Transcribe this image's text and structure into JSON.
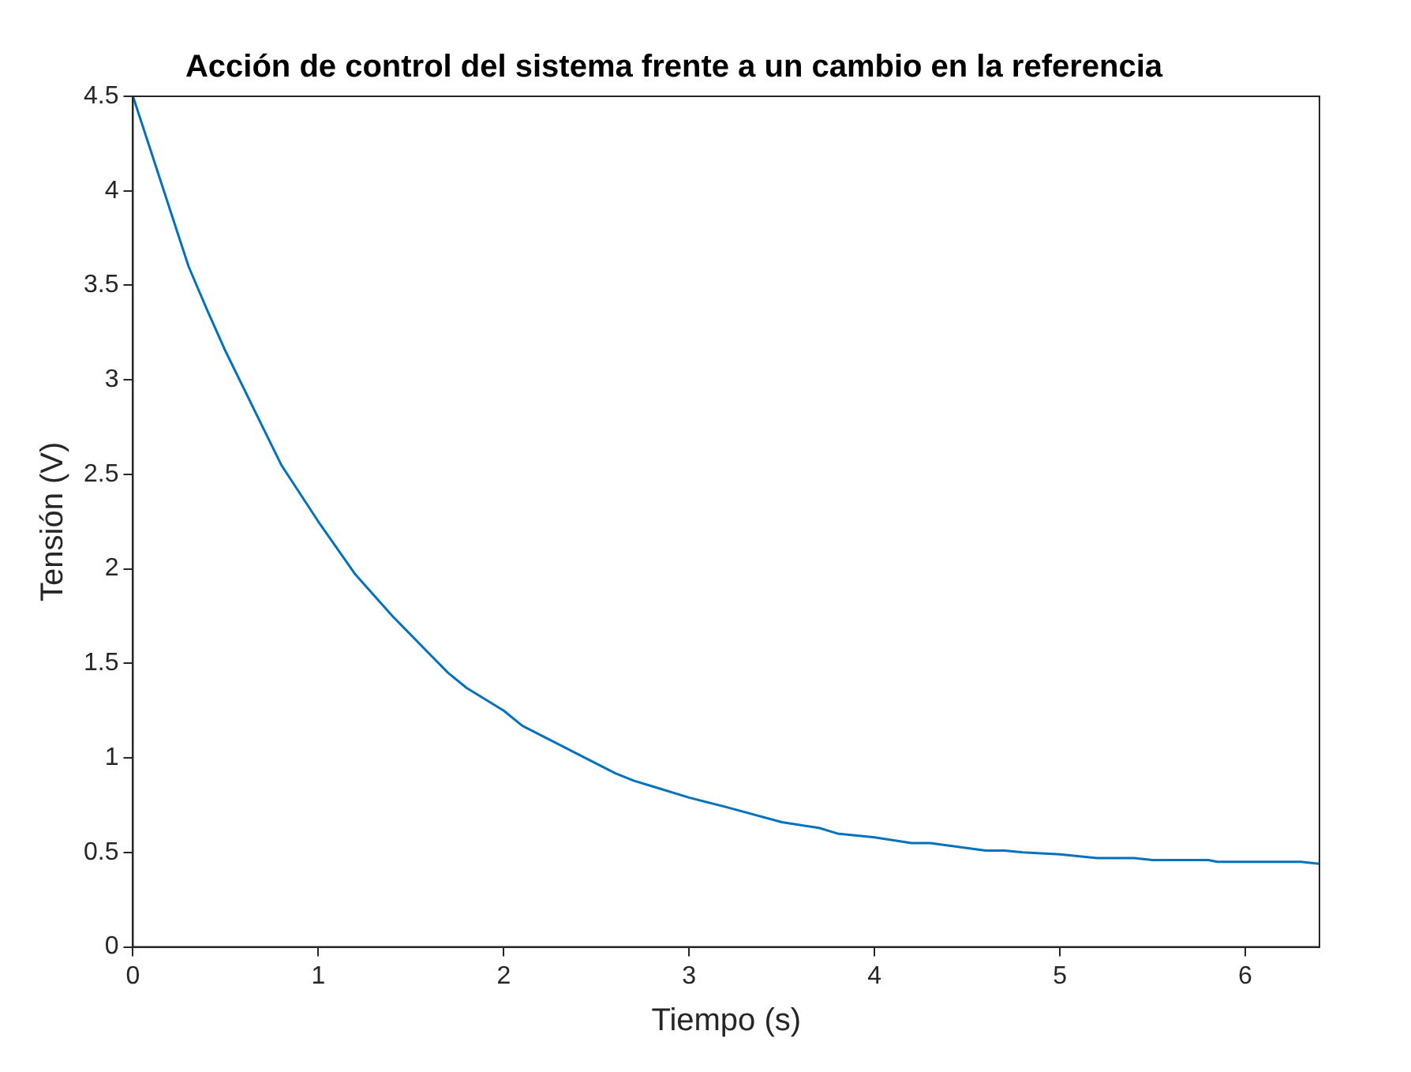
{
  "chart_data": {
    "type": "line",
    "title": "Acción de control del sistema frente a un cambio en la referencia",
    "xlabel": "Tiempo (s)",
    "ylabel": "Tensión (V)",
    "x": [
      0,
      0.1,
      0.2,
      0.3,
      0.4,
      0.5,
      0.6,
      0.7,
      0.8,
      1.0,
      1.2,
      1.4,
      1.6,
      1.7,
      1.8,
      2.0,
      2.1,
      2.3,
      2.5,
      2.6,
      2.7,
      2.8,
      3.0,
      3.2,
      3.5,
      3.7,
      3.8,
      4.0,
      4.2,
      4.3,
      4.6,
      4.7,
      4.8,
      5.0,
      5.2,
      5.4,
      5.5,
      5.8,
      5.85,
      6.3,
      6.4
    ],
    "series": [
      {
        "color": "#0072bd",
        "values": [
          4.5,
          4.2,
          3.9,
          3.6,
          3.37,
          3.15,
          2.95,
          2.75,
          2.55,
          2.25,
          1.97,
          1.75,
          1.55,
          1.45,
          1.37,
          1.25,
          1.17,
          1.07,
          0.97,
          0.92,
          0.88,
          0.85,
          0.79,
          0.74,
          0.66,
          0.63,
          0.6,
          0.58,
          0.55,
          0.55,
          0.51,
          0.51,
          0.5,
          0.49,
          0.47,
          0.47,
          0.46,
          0.46,
          0.45,
          0.45,
          0.44
        ]
      }
    ],
    "xlim": [
      0,
      6.4
    ],
    "xticks": [
      0,
      1,
      2,
      3,
      4,
      5,
      6
    ],
    "ylim": [
      0,
      4.5
    ],
    "yticks": [
      0,
      0.5,
      1,
      1.5,
      2,
      2.5,
      3,
      3.5,
      4,
      4.5
    ],
    "legend": false,
    "marker": "none",
    "line_style": "solid"
  }
}
